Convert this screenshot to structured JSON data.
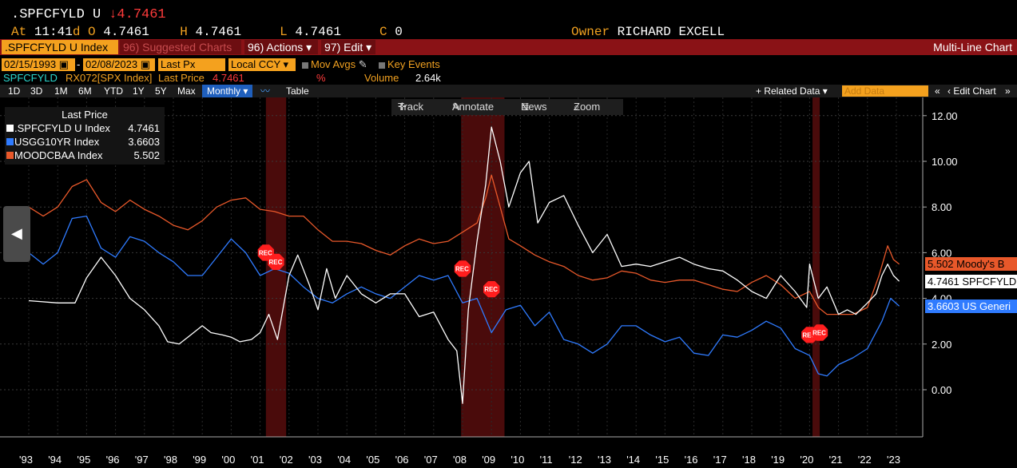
{
  "header": {
    "ticker": ".SPFCFYLD U",
    "last": "↓4.7461",
    "at_label": "At",
    "time": "11:41",
    "d_label": "d",
    "o_label": "O",
    "open": "4.7461",
    "h_label": "H",
    "high": "4.7461",
    "l_label": "L",
    "low": "4.7461",
    "c_label": "C",
    "c_value": "0",
    "owner_label": "Owner",
    "owner": "RICHARD EXCELL"
  },
  "cmdbar": {
    "security": ".SPFCFYLD U Index",
    "suggested": "96) Suggested Charts",
    "actions": "96) Actions",
    "edit": "97) Edit",
    "title": "Multi-Line Chart"
  },
  "controls": {
    "start_date": "02/15/1993",
    "end_date": "02/08/2023",
    "last_px": "Last Px",
    "ccy": "Local CCY",
    "mov_avgs": "Mov Avgs",
    "key_events": "Key Events"
  },
  "info": {
    "ticker": "SPFCFYLD",
    "rx": "RX072[SPX Index]",
    "last_price_label": "Last Price",
    "last_price": "4.7461",
    "pct": "%",
    "volume_label": "Volume",
    "volume": "2.64k"
  },
  "periods": [
    "1D",
    "3D",
    "1M",
    "6M",
    "YTD",
    "1Y",
    "5Y",
    "Max"
  ],
  "period_selected": "Monthly",
  "table_label": "Table",
  "related_data": "+ Related Data",
  "add_data_placeholder": "Add Data",
  "edit_chart": "Edit Chart",
  "chart_toolbar": {
    "track": "Track",
    "annotate": "Annotate",
    "news": "News",
    "zoom": "Zoom"
  },
  "legend": {
    "title": "Last Price",
    "items": [
      {
        "name": ".SPFCFYLD U Index",
        "value": "4.7461",
        "color": "#ffffff"
      },
      {
        "name": "USGG10YR Index",
        "value": "3.6603",
        "color": "#2f7bff"
      },
      {
        "name": "MOODCBAA Index",
        "value": "5.502",
        "color": "#e8582a"
      }
    ]
  },
  "right_tags": [
    {
      "text": "5.502  Moody's B",
      "bg": "#e8582a",
      "fg": "#000000"
    },
    {
      "text": "4.7461 SPFCFYLD",
      "bg": "#ffffff",
      "fg": "#000000"
    },
    {
      "text": "3.6603 US Generi",
      "bg": "#2f7bff",
      "fg": "#ffffff"
    }
  ],
  "rec_label": "REC",
  "chart_data": {
    "type": "line",
    "x_ticks": [
      "'93",
      "'94",
      "'95",
      "'96",
      "'97",
      "'98",
      "'99",
      "'00",
      "'01",
      "'02",
      "'03",
      "'04",
      "'05",
      "'06",
      "'07",
      "'08",
      "'09",
      "'10",
      "'11",
      "'12",
      "'13",
      "'14",
      "'15",
      "'16",
      "'17",
      "'18",
      "'19",
      "'20",
      "'21",
      "'22",
      "'23"
    ],
    "y_ticks": [
      "12.00",
      "10.00",
      "8.00",
      "6.00",
      "4.00",
      "2.00",
      "0.00"
    ],
    "ylim": [
      -2,
      12.5
    ],
    "recessions": [
      [
        2001.2,
        2001.9
      ],
      [
        2007.95,
        2009.45
      ],
      [
        2020.1,
        2020.35
      ]
    ],
    "series": [
      {
        "name": ".SPFCFYLD U Index",
        "color": "#ffffff",
        "x": [
          1993.0,
          1994.0,
          1994.6,
          1995.0,
          1995.5,
          1996.0,
          1996.5,
          1997.0,
          1997.5,
          1997.8,
          1998.2,
          1998.5,
          1999.0,
          1999.3,
          1999.7,
          2000.0,
          2000.3,
          2000.7,
          2001.0,
          2001.3,
          2001.6,
          2002.0,
          2002.3,
          2002.7,
          2003.0,
          2003.3,
          2003.6,
          2004.0,
          2004.5,
          2005.0,
          2005.5,
          2006.0,
          2006.5,
          2007.0,
          2007.5,
          2007.8,
          2008.0,
          2008.2,
          2008.5,
          2008.8,
          2009.0,
          2009.3,
          2009.6,
          2010.0,
          2010.3,
          2010.6,
          2011.0,
          2011.5,
          2012.0,
          2012.5,
          2013.0,
          2013.5,
          2014.0,
          2014.5,
          2015.0,
          2015.5,
          2016.0,
          2016.5,
          2017.0,
          2017.5,
          2018.0,
          2018.5,
          2019.0,
          2019.5,
          2019.9,
          2020.0,
          2020.3,
          2020.6,
          2021.0,
          2021.3,
          2021.6,
          2022.0,
          2022.3,
          2022.5,
          2022.7,
          2022.9,
          2023.1
        ],
        "y": [
          3.9,
          3.8,
          3.8,
          4.9,
          5.8,
          5.0,
          4.0,
          3.5,
          2.8,
          2.1,
          2.0,
          2.3,
          2.8,
          2.5,
          2.4,
          2.3,
          2.1,
          2.2,
          2.5,
          3.3,
          2.2,
          5.0,
          5.9,
          4.6,
          3.5,
          5.3,
          4.0,
          5.0,
          4.2,
          3.8,
          4.2,
          4.2,
          3.2,
          3.4,
          2.2,
          1.7,
          -0.6,
          3.5,
          6.5,
          9.0,
          11.5,
          10.0,
          8.0,
          9.5,
          10.0,
          7.3,
          8.2,
          8.5,
          7.2,
          6.0,
          6.8,
          5.4,
          5.5,
          5.4,
          5.6,
          5.8,
          5.5,
          5.3,
          5.2,
          4.8,
          4.3,
          4.0,
          5.0,
          4.3,
          3.6,
          5.5,
          4.0,
          4.5,
          3.3,
          3.5,
          3.3,
          3.8,
          4.2,
          5.0,
          5.5,
          5.0,
          4.75
        ]
      },
      {
        "name": "USGG10YR Index",
        "color": "#2f7bff",
        "x": [
          1993.0,
          1993.5,
          1994.0,
          1994.5,
          1995.0,
          1995.5,
          1996.0,
          1996.5,
          1997.0,
          1997.5,
          1998.0,
          1998.5,
          1999.0,
          1999.5,
          2000.0,
          2000.5,
          2001.0,
          2001.5,
          2002.0,
          2002.5,
          2003.0,
          2003.5,
          2004.0,
          2004.5,
          2005.0,
          2005.5,
          2006.0,
          2006.5,
          2007.0,
          2007.5,
          2008.0,
          2008.5,
          2009.0,
          2009.5,
          2010.0,
          2010.5,
          2011.0,
          2011.5,
          2012.0,
          2012.5,
          2013.0,
          2013.5,
          2014.0,
          2014.5,
          2015.0,
          2015.5,
          2016.0,
          2016.5,
          2017.0,
          2017.5,
          2018.0,
          2018.5,
          2019.0,
          2019.5,
          2020.0,
          2020.3,
          2020.6,
          2021.0,
          2021.5,
          2022.0,
          2022.5,
          2022.8,
          2023.1
        ],
        "y": [
          6.0,
          5.5,
          6.0,
          7.5,
          7.6,
          6.2,
          5.8,
          6.7,
          6.5,
          6.0,
          5.6,
          5.0,
          5.0,
          5.8,
          6.6,
          6.0,
          5.0,
          5.3,
          5.1,
          4.5,
          4.0,
          3.8,
          4.2,
          4.5,
          4.2,
          4.0,
          4.5,
          5.0,
          4.8,
          5.0,
          3.8,
          4.0,
          2.5,
          3.5,
          3.7,
          2.8,
          3.4,
          2.2,
          2.0,
          1.6,
          2.0,
          2.8,
          2.8,
          2.4,
          2.1,
          2.3,
          1.6,
          1.5,
          2.4,
          2.3,
          2.6,
          3.0,
          2.7,
          1.8,
          1.5,
          0.7,
          0.6,
          1.1,
          1.4,
          1.8,
          3.0,
          4.0,
          3.66
        ]
      },
      {
        "name": "MOODCBAA Index",
        "color": "#e8582a",
        "x": [
          1993.0,
          1993.5,
          1994.0,
          1994.5,
          1995.0,
          1995.5,
          1996.0,
          1996.5,
          1997.0,
          1997.5,
          1998.0,
          1998.5,
          1999.0,
          1999.5,
          2000.0,
          2000.5,
          2001.0,
          2001.5,
          2002.0,
          2002.5,
          2003.0,
          2003.5,
          2004.0,
          2004.5,
          2005.0,
          2005.5,
          2006.0,
          2006.5,
          2007.0,
          2007.5,
          2008.0,
          2008.5,
          2008.8,
          2009.0,
          2009.3,
          2009.6,
          2010.0,
          2010.5,
          2011.0,
          2011.5,
          2012.0,
          2012.5,
          2013.0,
          2013.5,
          2014.0,
          2014.5,
          2015.0,
          2015.5,
          2016.0,
          2016.5,
          2017.0,
          2017.5,
          2018.0,
          2018.5,
          2019.0,
          2019.5,
          2020.0,
          2020.3,
          2020.6,
          2021.0,
          2021.5,
          2022.0,
          2022.4,
          2022.7,
          2022.9,
          2023.1
        ],
        "y": [
          8.0,
          7.6,
          8.0,
          8.9,
          9.2,
          8.2,
          7.8,
          8.3,
          7.9,
          7.6,
          7.2,
          7.0,
          7.4,
          8.0,
          8.3,
          8.4,
          7.9,
          7.8,
          7.6,
          7.6,
          7.0,
          6.5,
          6.5,
          6.4,
          6.1,
          5.9,
          6.3,
          6.6,
          6.4,
          6.5,
          6.9,
          7.3,
          8.4,
          9.4,
          8.0,
          6.6,
          6.3,
          5.9,
          5.6,
          5.4,
          5.0,
          4.8,
          4.9,
          5.2,
          5.1,
          4.8,
          4.7,
          4.8,
          4.8,
          4.6,
          4.4,
          4.3,
          4.7,
          5.0,
          4.6,
          4.0,
          4.3,
          3.6,
          3.3,
          3.3,
          3.3,
          3.6,
          5.0,
          6.3,
          5.7,
          5.5
        ]
      }
    ]
  }
}
